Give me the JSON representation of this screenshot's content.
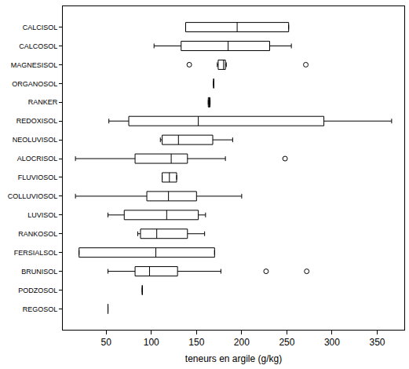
{
  "chart_data": {
    "type": "box",
    "orientation": "horizontal",
    "x_label": "teneurs en argile (g/kg)",
    "categories": [
      "CALCISOL",
      "CALCOSOL",
      "MAGNESISOL",
      "ORGANOSOL",
      "RANKER",
      "REDOXISOL",
      "NEOLUVISOL",
      "ALOCRISOL",
      "FLUVIOSOL",
      "COLLUVIOSOL",
      "LUVISOL",
      "RANKOSOL",
      "FERSIALSOL",
      "BRUNISOL",
      "PODZOSOL",
      "REGOSOL"
    ],
    "lower_whisker": [
      138,
      103,
      173,
      169,
      163,
      53,
      110,
      16,
      112,
      16,
      52,
      85,
      20,
      52,
      90,
      52
    ],
    "q1": [
      138,
      133,
      174,
      169,
      163,
      75,
      112,
      82,
      112,
      95,
      70,
      88,
      20,
      82,
      90,
      52
    ],
    "median": [
      195,
      185,
      180,
      169,
      164,
      152,
      130,
      122,
      120,
      119,
      117,
      106,
      105,
      98,
      90,
      52
    ],
    "q3": [
      252,
      231,
      182,
      169,
      165,
      291,
      168,
      140,
      128,
      150,
      152,
      140,
      170,
      129,
      90,
      52
    ],
    "upper_whisker": [
      252,
      255,
      183,
      169,
      165,
      366,
      190,
      182,
      128,
      200,
      160,
      159,
      170,
      177,
      90,
      52
    ],
    "outliers": [
      [],
      [],
      [
        142,
        271
      ],
      [],
      [],
      [],
      [],
      [
        248
      ],
      [],
      [],
      [],
      [],
      [],
      [
        227,
        272
      ],
      [],
      []
    ],
    "xlim": [
      2,
      380
    ],
    "xticks": [
      50,
      100,
      150,
      200,
      250,
      300,
      350
    ],
    "grid": false,
    "color": "#000000",
    "marker": "circle-open"
  }
}
